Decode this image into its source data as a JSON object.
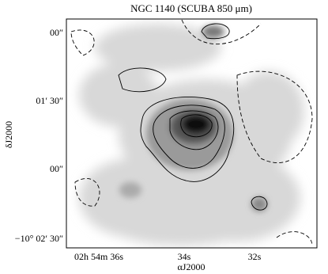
{
  "figure": {
    "title": "NGC 1140 (SCUBA 850 μm)",
    "x_label": "αJ2000",
    "y_label": "δJ2000",
    "x_ticks": [
      "02h 54m 36s",
      "34s",
      "32s"
    ],
    "y_ticks": [
      "00″",
      "01′ 30″",
      "00″",
      "−10° 02′ 30″"
    ]
  }
}
